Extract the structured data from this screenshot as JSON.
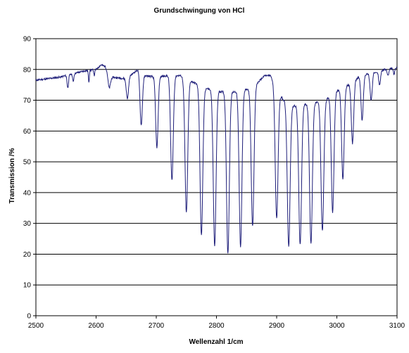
{
  "chart_data": {
    "type": "line",
    "title": "Grundschwingung von HCl",
    "xlabel": "Wellenzahl  1/cm",
    "ylabel": "Transmission  /%",
    "xlim": [
      2500,
      3100
    ],
    "ylim": [
      0,
      90
    ],
    "x_ticks": [
      2500,
      2600,
      2700,
      2800,
      2900,
      3000,
      3100
    ],
    "y_ticks": [
      0,
      10,
      20,
      30,
      40,
      50,
      60,
      70,
      80,
      90
    ],
    "grid": "horizontal",
    "line_color": "#1f1f7a",
    "grid_color": "#000000",
    "series": [
      {
        "baseline": [
          [
            2500,
            76.5
          ],
          [
            2520,
            77
          ],
          [
            2540,
            77.5
          ],
          [
            2560,
            78.5
          ],
          [
            2580,
            79.5
          ],
          [
            2600,
            80
          ],
          [
            2608,
            81.5
          ],
          [
            2615,
            81
          ],
          [
            2625,
            77.5
          ],
          [
            2650,
            77
          ],
          [
            2670,
            80
          ],
          [
            2680,
            78
          ],
          [
            2700,
            77.5
          ],
          [
            2720,
            78
          ],
          [
            2740,
            78
          ],
          [
            2760,
            76
          ],
          [
            2780,
            74
          ],
          [
            2800,
            73
          ],
          [
            2820,
            72.5
          ],
          [
            2840,
            73
          ],
          [
            2860,
            74
          ],
          [
            2875,
            77
          ],
          [
            2880,
            78
          ],
          [
            2890,
            78
          ],
          [
            2900,
            73
          ],
          [
            2920,
            68
          ],
          [
            2940,
            68.5
          ],
          [
            2960,
            69
          ],
          [
            2980,
            70
          ],
          [
            3000,
            73
          ],
          [
            3020,
            75
          ],
          [
            3040,
            78
          ],
          [
            3060,
            79
          ],
          [
            3080,
            80
          ],
          [
            3100,
            80.5
          ]
        ],
        "bands": [
          [
            2553,
            74,
            1.2
          ],
          [
            2562,
            76,
            1.0
          ],
          [
            2588,
            76,
            0.8
          ],
          [
            2597,
            78,
            0.8
          ],
          [
            2622,
            74,
            2.0
          ],
          [
            2652,
            70.5,
            1.8
          ],
          [
            2675,
            62,
            2.0
          ],
          [
            2701,
            54.5,
            2.0
          ],
          [
            2726,
            44,
            2.2
          ],
          [
            2750,
            33.5,
            2.3
          ],
          [
            2775,
            26,
            2.3
          ],
          [
            2797,
            22.5,
            2.3
          ],
          [
            2819,
            20,
            2.3
          ],
          [
            2840,
            22.5,
            2.3
          ],
          [
            2860,
            29,
            2.3
          ],
          [
            2900,
            31.5,
            2.3
          ],
          [
            2920,
            22.5,
            2.3
          ],
          [
            2939,
            23,
            2.3
          ],
          [
            2957,
            23.5,
            2.3
          ],
          [
            2976,
            27.5,
            2.3
          ],
          [
            2993,
            33.5,
            2.2
          ],
          [
            3010,
            44.5,
            2.1
          ],
          [
            3026,
            56,
            2.0
          ],
          [
            3042,
            63.5,
            1.9
          ],
          [
            3057,
            70,
            1.8
          ],
          [
            3071,
            75,
            1.6
          ],
          [
            3085,
            78,
            1.4
          ],
          [
            3095,
            78.5,
            1.2
          ]
        ]
      }
    ]
  }
}
